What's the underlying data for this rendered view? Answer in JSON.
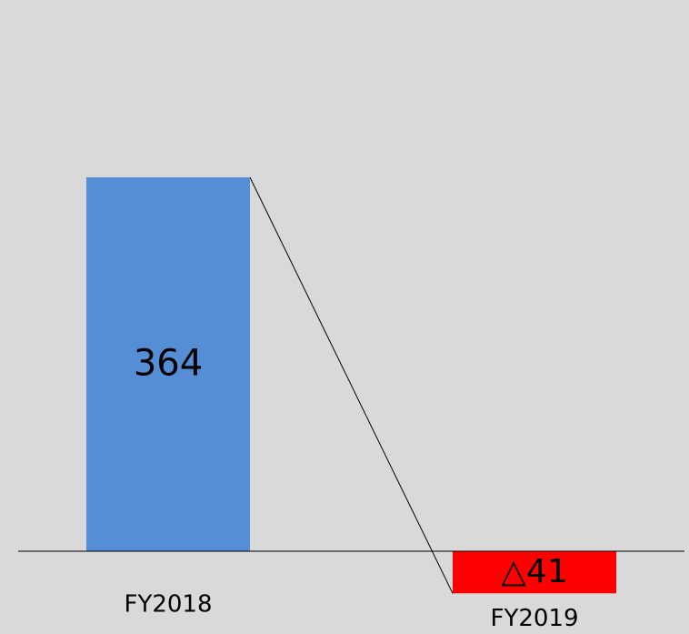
{
  "chart_data": {
    "type": "bar",
    "categories": [
      "FY2018",
      "FY2019"
    ],
    "values": [
      364,
      -41
    ],
    "value_labels": [
      "364",
      "△41"
    ],
    "colors": [
      "#558ed5",
      "#ff0000"
    ]
  }
}
